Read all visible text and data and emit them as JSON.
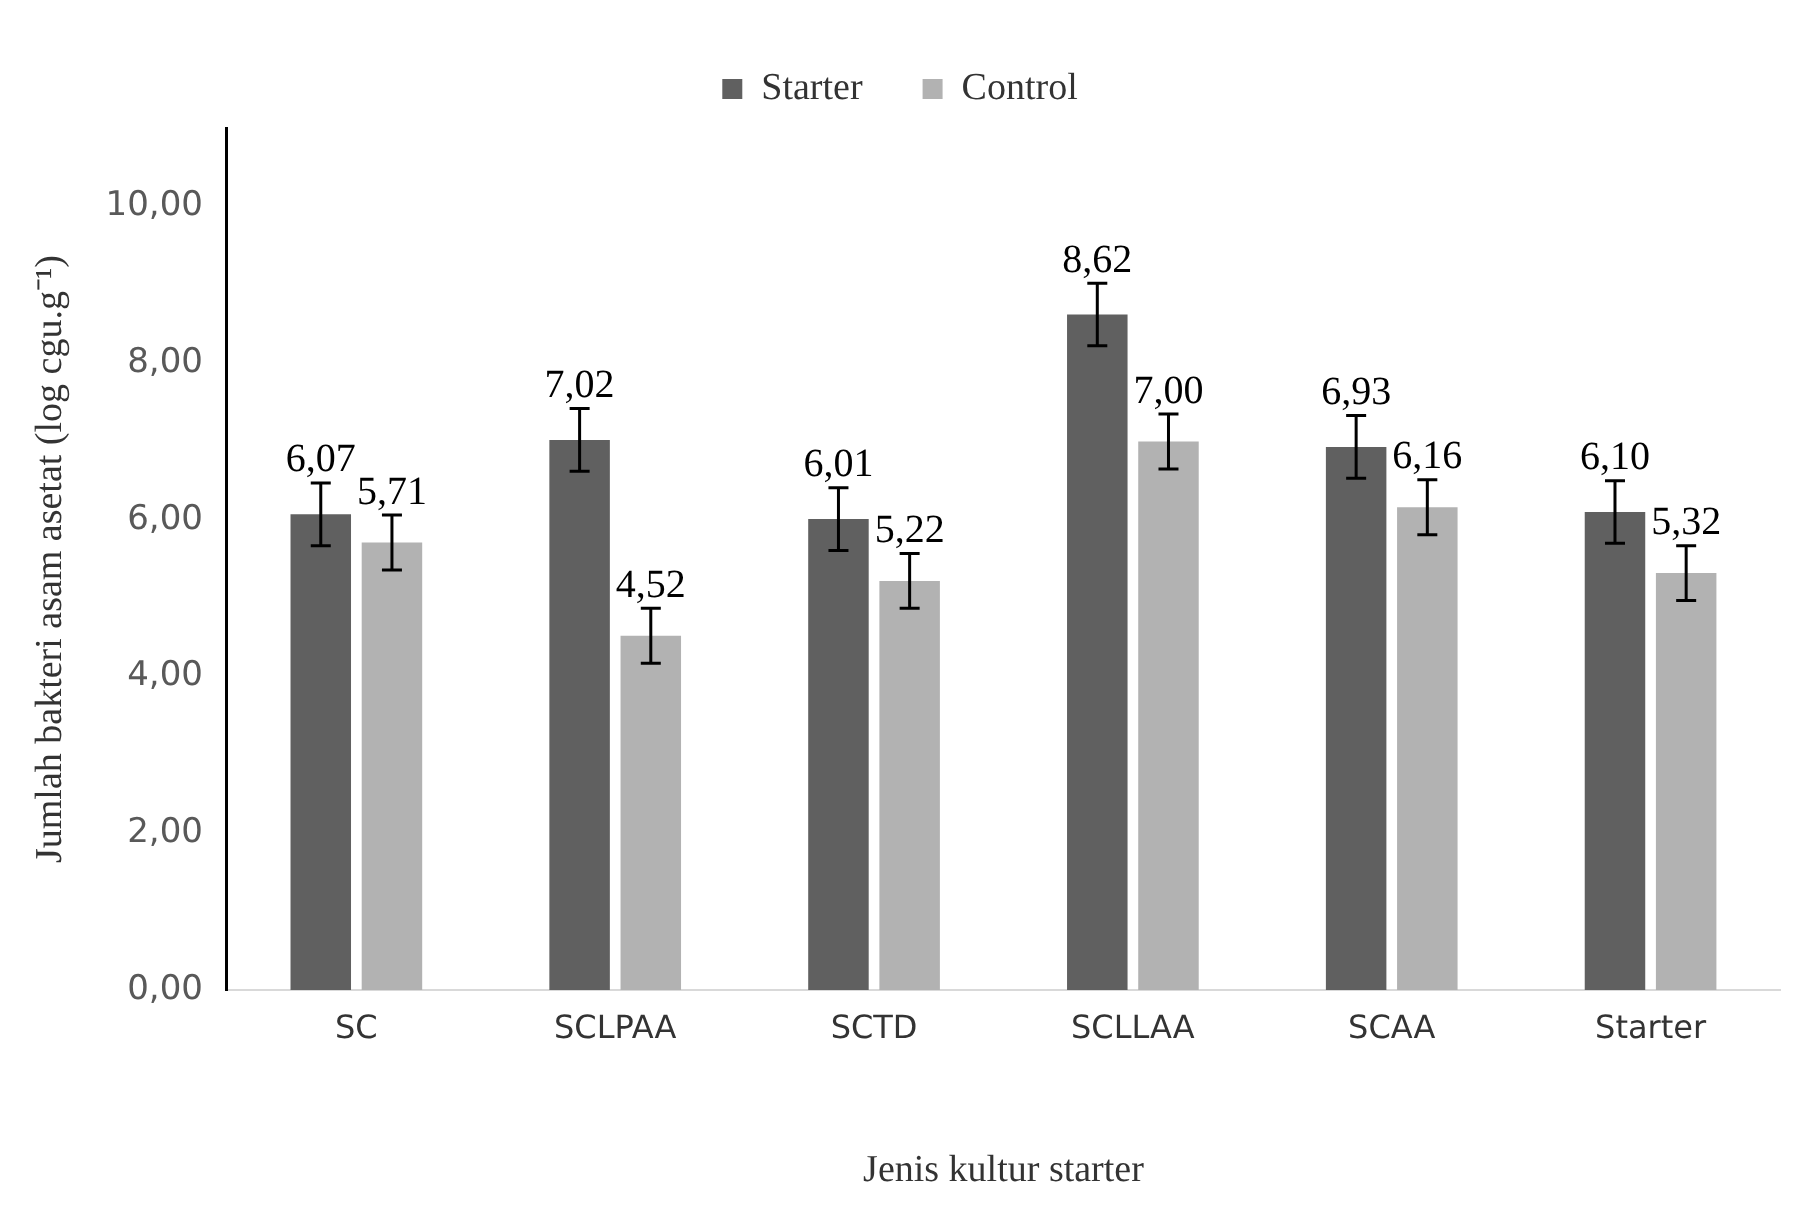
{
  "chart_data": {
    "type": "bar",
    "xlabel": "Jenis kultur starter",
    "ylabel": "Jumlah bakteri asam asetat (log cgu.g⁻¹)",
    "categories": [
      "SC",
      "SCLPAA",
      "SCTD",
      "SCLLAA",
      "SCAA",
      "Starter"
    ],
    "series": [
      {
        "name": "Starter",
        "color": "#606060",
        "values": [
          6.07,
          7.02,
          6.01,
          8.62,
          6.93,
          6.1
        ],
        "value_labels": [
          "6,07",
          "7,02",
          "6,01",
          "8,62",
          "6,93",
          "6,10"
        ],
        "errors": [
          0.4,
          0.4,
          0.4,
          0.4,
          0.4,
          0.4
        ]
      },
      {
        "name": "Control",
        "color": "#b2b2b2",
        "values": [
          5.71,
          4.52,
          5.22,
          7.0,
          6.16,
          5.32
        ],
        "value_labels": [
          "5,71",
          "4,52",
          "5,22",
          "7,00",
          "6,16",
          "5,32"
        ],
        "errors": [
          0.35,
          0.35,
          0.35,
          0.35,
          0.35,
          0.35
        ]
      }
    ],
    "ylim": [
      0,
      11
    ],
    "yticks": [
      {
        "value": 0,
        "label": "0,00"
      },
      {
        "value": 2,
        "label": "2,00"
      },
      {
        "value": 4,
        "label": "4,00"
      },
      {
        "value": 6,
        "label": "6,00"
      },
      {
        "value": 8,
        "label": "8,00"
      },
      {
        "value": 10,
        "label": "10,00"
      }
    ],
    "grid": false,
    "legend": "top"
  }
}
